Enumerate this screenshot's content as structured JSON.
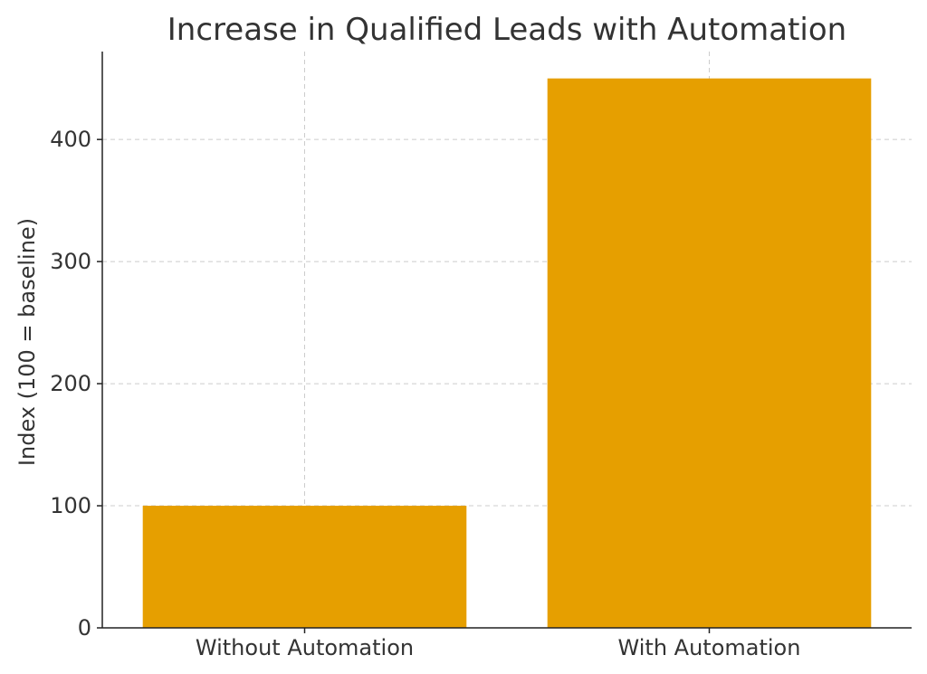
{
  "chart_data": {
    "type": "bar",
    "title": "Increase in Qualified Leads with Automation",
    "xlabel": "",
    "ylabel": "Index (100 = baseline)",
    "categories": [
      "Without Automation",
      "With Automation"
    ],
    "values": [
      100,
      450
    ],
    "ylim": [
      0,
      472
    ],
    "yticks": [
      0,
      100,
      200,
      300,
      400
    ],
    "grid": true,
    "bar_color": "#E69F00"
  }
}
